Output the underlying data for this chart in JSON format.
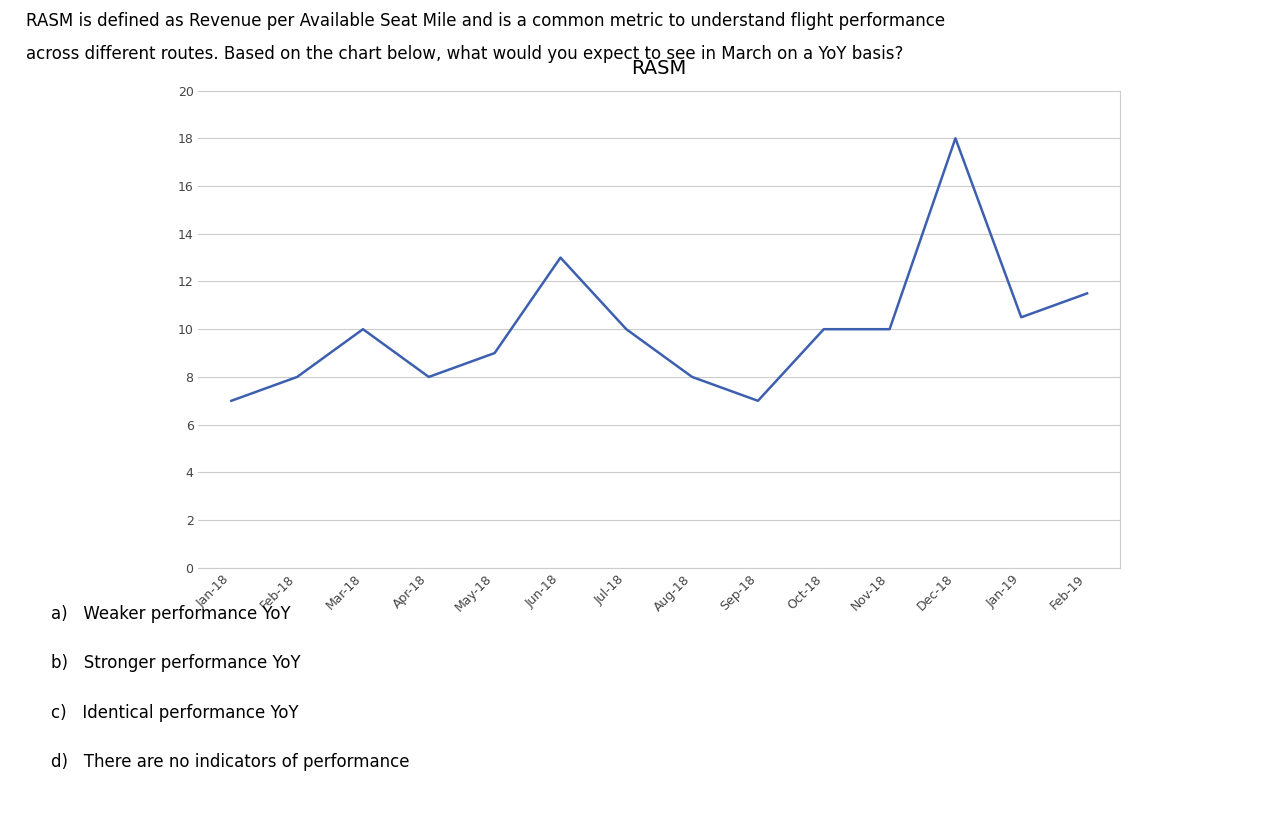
{
  "title": "RASM",
  "x_labels": [
    "Jan-18",
    "Feb-18",
    "Mar-18",
    "Apr-18",
    "May-18",
    "Jun-18",
    "Jul-18",
    "Aug-18",
    "Sep-18",
    "Oct-18",
    "Nov-18",
    "Dec-18",
    "Jan-19",
    "Feb-19"
  ],
  "y_values": [
    7,
    8,
    10,
    8,
    9,
    13,
    10,
    8,
    7,
    10,
    10,
    18,
    10.5,
    11.5
  ],
  "ylim": [
    0,
    20
  ],
  "yticks": [
    0,
    2,
    4,
    6,
    8,
    10,
    12,
    14,
    16,
    18,
    20
  ],
  "line_color": "#3d5faf",
  "line_width": 1.8,
  "chart_bg": "#ffffff",
  "fig_bg": "#ffffff",
  "grid_color": "#cccccc",
  "border_color": "#cccccc",
  "header_text_line1": "RASM is defined as Revenue per Available Seat Mile and is a common metric to understand flight performance",
  "header_text_line2": "across different routes. Based on the chart below, what would you expect to see in March on a YoY basis?",
  "answer_a": "a)   Weaker performance YoY",
  "answer_b": "b)   Stronger performance YoY",
  "answer_c": "c)   Identical performance YoY",
  "answer_d": "d)   There are no indicators of performance",
  "title_fontsize": 14,
  "header_fontsize": 12,
  "answer_fontsize": 12,
  "tick_label_fontsize": 9
}
